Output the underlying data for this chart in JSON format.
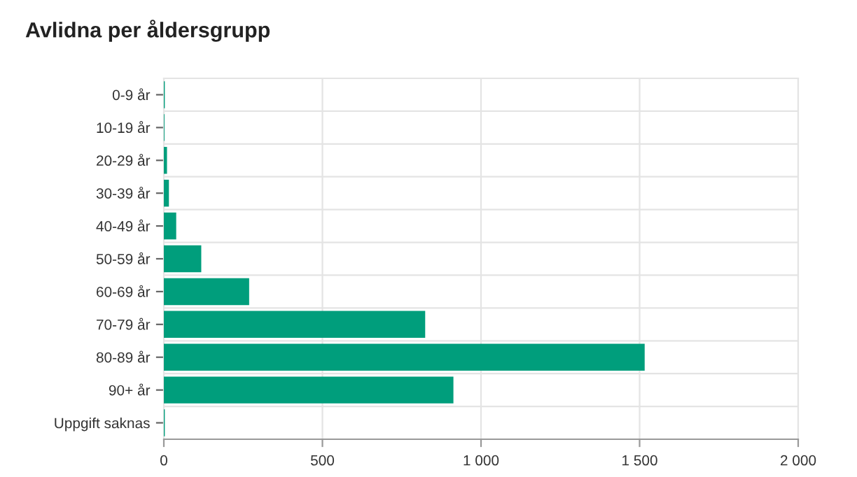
{
  "chart_data": {
    "type": "bar",
    "orientation": "horizontal",
    "title": "Avlidna per åldersgrupp",
    "categories": [
      "0-9 år",
      "10-19 år",
      "20-29 år",
      "30-39 år",
      "40-49 år",
      "50-59 år",
      "60-69 år",
      "70-79 år",
      "80-89 år",
      "90+ år",
      "Uppgift saknas"
    ],
    "values": [
      3,
      2,
      10,
      16,
      39,
      118,
      269,
      824,
      1516,
      913,
      3
    ],
    "color": "#009e7c",
    "xlim": [
      0,
      2000
    ],
    "xticks": [
      0,
      500,
      {
        "value": 1000,
        "label": "1 000"
      },
      {
        "value": 1500,
        "label": "1 500"
      },
      {
        "value": 2000,
        "label": "2 000"
      }
    ],
    "grid": true,
    "legend": false
  }
}
